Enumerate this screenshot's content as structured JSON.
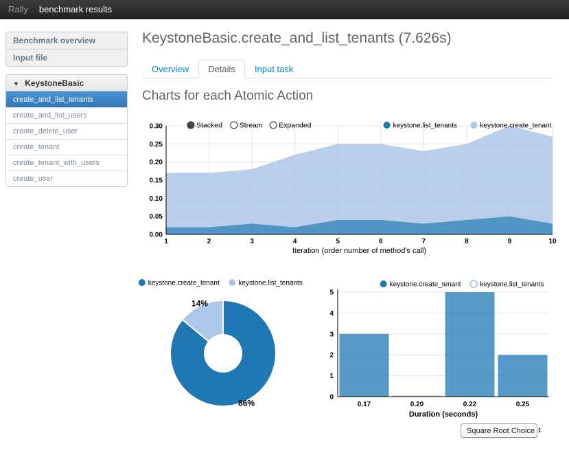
{
  "navbar": {
    "brand": "Rally",
    "title": "benchmark results"
  },
  "sidebar": {
    "nav_items": [
      {
        "label": "Benchmark overview"
      },
      {
        "label": "Input file"
      }
    ],
    "group": {
      "header": "KeystoneBasic",
      "collapse_icon": "▼",
      "items": [
        {
          "label": "create_and_list_tenants",
          "active": true
        },
        {
          "label": "create_and_list_users",
          "active": false
        },
        {
          "label": "create_delete_user",
          "active": false
        },
        {
          "label": "create_tenant",
          "active": false
        },
        {
          "label": "create_tenant_with_users",
          "active": false
        },
        {
          "label": "create_user",
          "active": false
        }
      ]
    }
  },
  "main": {
    "title": "KeystoneBasic.create_and_list_tenants (7.626s)",
    "tabs": [
      {
        "label": "Overview",
        "active": false
      },
      {
        "label": "Details",
        "active": true
      },
      {
        "label": "Input task",
        "active": false
      }
    ],
    "section_heading": "Charts for each Atomic Action"
  },
  "colors": {
    "series_dark": "#1f77b4",
    "series_light": "#aec7e8",
    "link": "#0088cc"
  },
  "chart_data": [
    {
      "type": "area",
      "variant": "stacked",
      "controls": {
        "options": [
          "Stacked",
          "Stream",
          "Expanded"
        ],
        "selected": "Stacked"
      },
      "x": [
        1,
        2,
        3,
        4,
        5,
        6,
        7,
        8,
        9,
        10
      ],
      "xticks": [
        "1",
        "2",
        "3",
        "4",
        "5",
        "6",
        "7",
        "8",
        "9",
        "10"
      ],
      "series": [
        {
          "name": "keystone.list_tenants",
          "color": "#1f77b4",
          "values": [
            0.02,
            0.02,
            0.03,
            0.02,
            0.04,
            0.04,
            0.03,
            0.04,
            0.05,
            0.03
          ]
        },
        {
          "name": "keystone.create_tenant",
          "color": "#aec7e8",
          "values": [
            0.15,
            0.15,
            0.15,
            0.2,
            0.21,
            0.21,
            0.2,
            0.21,
            0.25,
            0.24
          ]
        }
      ],
      "xlabel": "Iteration (order number of method's call)",
      "ylim": [
        0,
        0.3
      ],
      "yticks": [
        "0.00",
        "0.05",
        "0.10",
        "0.15",
        "0.20",
        "0.25",
        "0.30"
      ],
      "grid": true,
      "legend_position": "top-right"
    },
    {
      "type": "pie",
      "donut": true,
      "slices": [
        {
          "name": "keystone.create_tenant",
          "percent": 86,
          "label": "86%",
          "color": "#1f77b4"
        },
        {
          "name": "keystone.list_tenants",
          "percent": 14,
          "label": "14%",
          "color": "#aec7e8"
        }
      ],
      "legend_position": "top"
    },
    {
      "type": "bar",
      "categories": [
        "0.17",
        "0.20",
        "0.22",
        "0.25"
      ],
      "series": [
        {
          "name": "keystone.create_tenant",
          "color": "#1f77b4",
          "enabled": true,
          "values": [
            3,
            0,
            5,
            2
          ]
        },
        {
          "name": "keystone.list_tenants",
          "color": "#aec7e8",
          "enabled": false,
          "values": [
            0,
            0,
            0,
            0
          ]
        }
      ],
      "xlabel": "Duration (seconds)",
      "ylim": [
        0,
        5
      ],
      "yticks": [
        "0",
        "1",
        "2",
        "3",
        "4",
        "5"
      ],
      "grid": true,
      "legend_position": "top-right"
    }
  ],
  "histogram_select": {
    "value": "Square Root Choice",
    "stepper_up": "▲",
    "stepper_down": "▼"
  }
}
